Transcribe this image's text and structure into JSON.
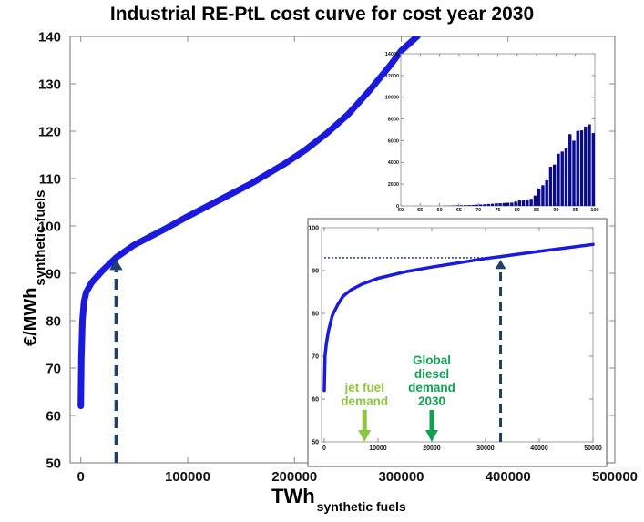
{
  "chart_data": [
    {
      "id": "main",
      "type": "line",
      "title": "Industrial RE-PtL cost curve for cost year 2030",
      "xlabel": "TWh",
      "xlabel_sub": "synthetic fuels",
      "ylabel": "€/MWh",
      "ylabel_sub": "synthetic fuels",
      "xlim": [
        -10000,
        500000
      ],
      "ylim": [
        50,
        140
      ],
      "xticks": [
        0,
        100000,
        200000,
        300000,
        400000,
        500000
      ],
      "xtick_labels": [
        "0",
        "100000",
        "200000",
        "300000",
        "400000",
        "500000"
      ],
      "yticks": [
        50,
        60,
        70,
        80,
        90,
        100,
        110,
        120,
        130,
        140
      ],
      "ytick_labels": [
        "50",
        "60",
        "70",
        "80",
        "90",
        "100",
        "110",
        "120",
        "130",
        "140"
      ],
      "grid": false,
      "series": [
        {
          "name": "cost curve",
          "color": "#1a1adf",
          "x": [
            0,
            500,
            1500,
            3000,
            5000,
            10000,
            20000,
            33000,
            50000,
            80000,
            100000,
            130000,
            160000,
            190000,
            210000,
            230000,
            250000,
            270000,
            290000,
            300000,
            315000
          ],
          "y": [
            62,
            72,
            80,
            84,
            86,
            88,
            90.5,
            93.3,
            96,
            99.5,
            102,
            105.5,
            109,
            113,
            116,
            119.5,
            123.5,
            128.5,
            134,
            137,
            140
          ]
        }
      ],
      "annotations": [
        {
          "type": "dashed-arrow",
          "x": 33000,
          "from_y": 50,
          "to_y": 93,
          "color": "#1f3f6e"
        }
      ]
    },
    {
      "id": "inset-histogram",
      "type": "bar",
      "title": "",
      "xlim": [
        50,
        100
      ],
      "ylim": [
        0,
        14000
      ],
      "xticks": [
        50,
        55,
        60,
        65,
        70,
        75,
        80,
        85,
        90,
        95,
        100
      ],
      "xtick_labels": [
        "50",
        "55",
        "60",
        "65",
        "70",
        "75",
        "80",
        "85",
        "90",
        "95",
        "100"
      ],
      "yticks": [
        0,
        2000,
        4000,
        6000,
        8000,
        10000,
        12000,
        14000
      ],
      "ytick_labels": [
        "0",
        "2000",
        "4000",
        "6000",
        "8000",
        "10000",
        "12000",
        "14000"
      ],
      "color": "#0a0a8c",
      "categories": [
        62,
        63,
        64,
        65,
        66,
        67,
        68,
        69,
        70,
        71,
        72,
        73,
        74,
        75,
        76,
        77,
        78,
        79,
        80,
        81,
        82,
        83,
        84,
        85,
        86,
        87,
        88,
        89,
        90,
        91,
        92,
        93,
        94,
        95,
        96,
        97,
        98,
        99,
        100
      ],
      "values": [
        20,
        30,
        40,
        50,
        60,
        70,
        80,
        90,
        110,
        130,
        150,
        180,
        200,
        230,
        250,
        270,
        290,
        300,
        400,
        500,
        550,
        600,
        650,
        950,
        1600,
        1900,
        2350,
        3600,
        3800,
        4800,
        5000,
        5300,
        6600,
        6000,
        6900,
        6950,
        7300,
        7500,
        6700
      ]
    },
    {
      "id": "inset-zoom",
      "type": "line",
      "xlim": [
        -500,
        50000
      ],
      "ylim": [
        50,
        100
      ],
      "xticks": [
        0,
        10000,
        20000,
        30000,
        40000,
        50000
      ],
      "xtick_labels": [
        "0",
        "10000",
        "20000",
        "30000",
        "40000",
        "50000"
      ],
      "yticks": [
        50,
        60,
        70,
        80,
        90,
        100
      ],
      "ytick_labels": [
        "50",
        "60",
        "70",
        "80",
        "90",
        "100"
      ],
      "series": [
        {
          "name": "cost curve (zoom)",
          "color": "#1a1adf",
          "x": [
            0,
            150,
            400,
            800,
            1500,
            2500,
            3500,
            5000,
            7000,
            10000,
            15000,
            20000,
            25000,
            30000,
            33000,
            40000,
            45000,
            50000
          ],
          "y": [
            62,
            70,
            73,
            76,
            79.5,
            82,
            84,
            85.5,
            86.8,
            88.2,
            89.7,
            90.8,
            91.8,
            92.8,
            93.3,
            94.5,
            95.3,
            96.1
          ]
        }
      ],
      "reference_line": {
        "y": 93,
        "x_from": 0,
        "x_to": 33000,
        "style": "dotted",
        "color": "#1f3f6e"
      },
      "annotations": [
        {
          "type": "dashed-arrow",
          "x": 32800,
          "from_y": 50,
          "to_y": 92.5,
          "color": "#1f3f6e"
        },
        {
          "type": "arrow",
          "x": 7500,
          "label_lines": [
            "jet fuel",
            "demand"
          ],
          "color": "#8cc63f"
        },
        {
          "type": "arrow",
          "x": 20000,
          "label_lines": [
            "Global",
            "diesel",
            "demand",
            "2030"
          ],
          "color": "#12a150"
        }
      ]
    }
  ]
}
